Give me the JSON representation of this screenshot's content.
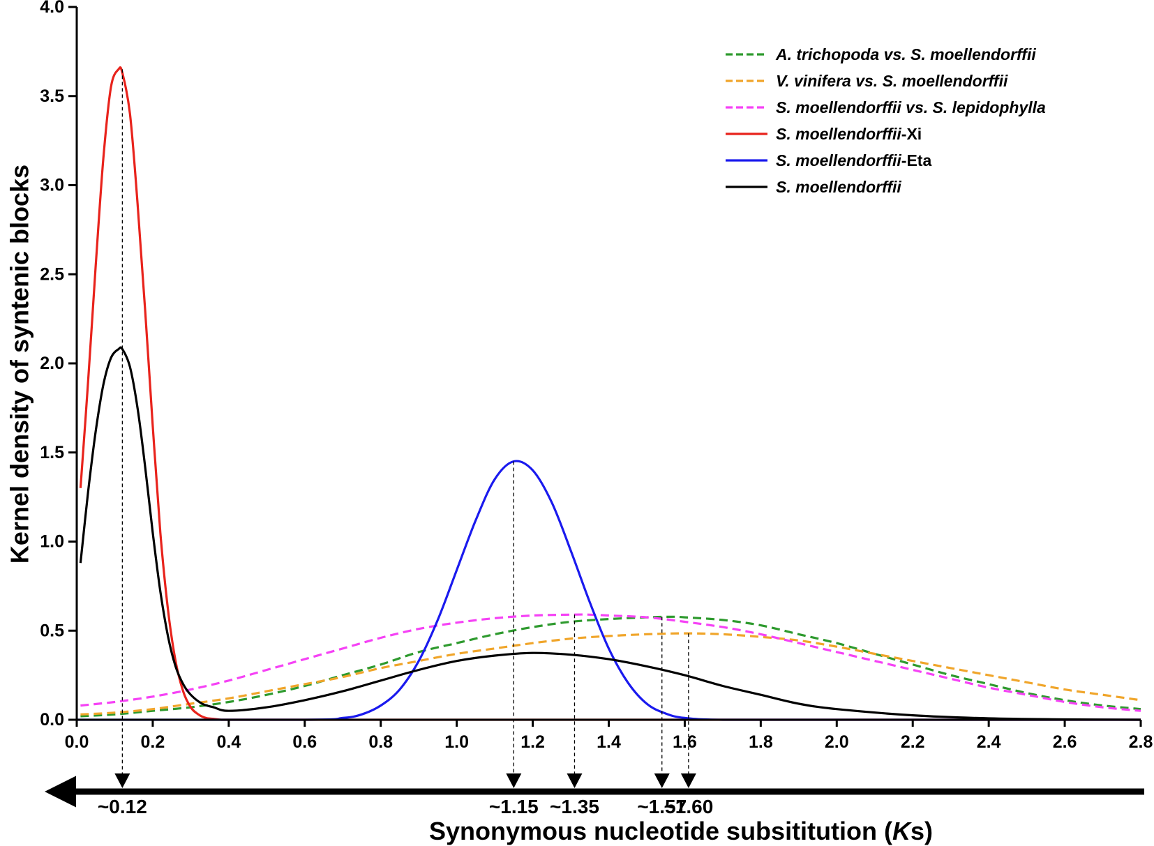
{
  "chart_data": {
    "type": "line",
    "title": "",
    "xlabel": "Synonymous nucleotide subsititution (Ks)",
    "ylabel": "Kernel density of syntenic blocks",
    "xlim": [
      0.0,
      2.8
    ],
    "ylim": [
      0.0,
      4.0
    ],
    "x_ticks": [
      0.0,
      0.2,
      0.4,
      0.6,
      0.8,
      1.0,
      1.2,
      1.4,
      1.6,
      1.8,
      2.0,
      2.2,
      2.4,
      2.6,
      2.8
    ],
    "x_tick_labels": [
      "0.0",
      "0.2",
      "0.4",
      "0.6",
      "0.8",
      "1.0",
      "1.2",
      "1.4",
      "1.6",
      "1.8",
      "2.0",
      "2.2",
      "2.4",
      "2.6",
      "2.8"
    ],
    "y_ticks": [
      0.0,
      0.5,
      1.0,
      1.5,
      2.0,
      2.5,
      3.0,
      3.5,
      4.0
    ],
    "y_tick_labels": [
      "0.0",
      "0.5",
      "1.0",
      "1.5",
      "2.0",
      "2.5",
      "3.0",
      "3.5",
      "4.0"
    ],
    "grid": false,
    "legend_position": "top-right",
    "series": [
      {
        "name": "A. trichopoda vs. S. moellendorffii",
        "name_parts": [
          {
            "text": "A. trichopoda vs. S. moellendorffii",
            "italic": true
          }
        ],
        "color": "#2e9a2e",
        "dashed": true,
        "x": [
          0.01,
          0.1,
          0.2,
          0.3,
          0.4,
          0.5,
          0.6,
          0.7,
          0.8,
          0.9,
          1.0,
          1.1,
          1.2,
          1.3,
          1.4,
          1.5,
          1.57,
          1.6,
          1.7,
          1.8,
          1.9,
          2.0,
          2.1,
          2.2,
          2.3,
          2.4,
          2.5,
          2.6,
          2.7,
          2.8
        ],
        "y": [
          0.02,
          0.03,
          0.05,
          0.07,
          0.1,
          0.14,
          0.19,
          0.25,
          0.31,
          0.38,
          0.43,
          0.48,
          0.52,
          0.55,
          0.565,
          0.575,
          0.578,
          0.575,
          0.56,
          0.53,
          0.48,
          0.43,
          0.37,
          0.31,
          0.25,
          0.2,
          0.15,
          0.11,
          0.08,
          0.06
        ]
      },
      {
        "name": "V. vinifera vs. S. moellendorffii",
        "name_parts": [
          {
            "text": "V. vinifera vs. S. moellendorffii",
            "italic": true
          }
        ],
        "color": "#f0a52a",
        "dashed": true,
        "x": [
          0.01,
          0.1,
          0.2,
          0.3,
          0.4,
          0.5,
          0.6,
          0.7,
          0.8,
          0.9,
          1.0,
          1.1,
          1.2,
          1.3,
          1.4,
          1.5,
          1.6,
          1.7,
          1.8,
          1.9,
          2.0,
          2.1,
          2.2,
          2.3,
          2.4,
          2.5,
          2.6,
          2.7,
          2.8
        ],
        "y": [
          0.03,
          0.04,
          0.06,
          0.09,
          0.12,
          0.16,
          0.2,
          0.24,
          0.29,
          0.33,
          0.37,
          0.4,
          0.43,
          0.455,
          0.47,
          0.48,
          0.485,
          0.48,
          0.465,
          0.445,
          0.41,
          0.37,
          0.33,
          0.29,
          0.25,
          0.21,
          0.17,
          0.14,
          0.11
        ]
      },
      {
        "name": "S. moellendorffii vs. S. lepidophylla",
        "name_parts": [
          {
            "text": "S. moellendorffii vs. S. lepidophylla",
            "italic": true
          }
        ],
        "color": "#f542f5",
        "dashed": true,
        "x": [
          0.01,
          0.1,
          0.2,
          0.3,
          0.4,
          0.5,
          0.6,
          0.7,
          0.8,
          0.9,
          1.0,
          1.1,
          1.2,
          1.3,
          1.35,
          1.4,
          1.5,
          1.6,
          1.7,
          1.8,
          1.9,
          2.0,
          2.1,
          2.2,
          2.3,
          2.4,
          2.5,
          2.6,
          2.7,
          2.8
        ],
        "y": [
          0.08,
          0.1,
          0.13,
          0.17,
          0.22,
          0.28,
          0.34,
          0.4,
          0.46,
          0.51,
          0.545,
          0.57,
          0.585,
          0.59,
          0.59,
          0.585,
          0.575,
          0.55,
          0.52,
          0.48,
          0.43,
          0.38,
          0.33,
          0.28,
          0.23,
          0.18,
          0.14,
          0.1,
          0.07,
          0.05
        ]
      },
      {
        "name": "S. moellendorffii-Xi",
        "name_parts": [
          {
            "text": "S. moellendorffii",
            "italic": true
          },
          {
            "text": "-Xi",
            "italic": false
          }
        ],
        "color": "#e8231c",
        "dashed": false,
        "x": [
          0.01,
          0.03,
          0.05,
          0.07,
          0.09,
          0.11,
          0.12,
          0.14,
          0.16,
          0.18,
          0.2,
          0.22,
          0.24,
          0.26,
          0.28,
          0.3,
          0.32,
          0.34,
          0.36,
          0.38,
          0.4,
          0.5,
          0.8,
          1.2,
          1.6,
          2.0,
          2.4,
          2.8
        ],
        "y": [
          1.3,
          1.9,
          2.55,
          3.15,
          3.55,
          3.65,
          3.63,
          3.4,
          2.9,
          2.3,
          1.65,
          1.05,
          0.62,
          0.33,
          0.16,
          0.07,
          0.03,
          0.01,
          0.005,
          0.0,
          0.0,
          0.0,
          0.0,
          0.0,
          0.0,
          0.0,
          0.0,
          0.0
        ]
      },
      {
        "name": "S. moellendorffii-Eta",
        "name_parts": [
          {
            "text": "S. moellendorffii",
            "italic": true
          },
          {
            "text": "-Eta",
            "italic": false
          }
        ],
        "color": "#1a1aee",
        "dashed": false,
        "x": [
          0.0,
          0.6,
          0.7,
          0.75,
          0.8,
          0.85,
          0.9,
          0.95,
          1.0,
          1.05,
          1.1,
          1.15,
          1.2,
          1.25,
          1.3,
          1.35,
          1.4,
          1.45,
          1.5,
          1.55,
          1.6,
          1.7,
          2.0,
          2.8
        ],
        "y": [
          0.0,
          0.0,
          0.01,
          0.03,
          0.08,
          0.17,
          0.33,
          0.56,
          0.84,
          1.12,
          1.35,
          1.45,
          1.4,
          1.22,
          0.95,
          0.66,
          0.4,
          0.21,
          0.09,
          0.035,
          0.01,
          0.0,
          0.0,
          0.0
        ]
      },
      {
        "name": "S. moellendorffii",
        "name_parts": [
          {
            "text": "S. moellendorffii",
            "italic": true
          }
        ],
        "color": "#000000",
        "dashed": false,
        "x": [
          0.01,
          0.03,
          0.05,
          0.07,
          0.09,
          0.11,
          0.12,
          0.14,
          0.16,
          0.18,
          0.2,
          0.22,
          0.24,
          0.26,
          0.28,
          0.3,
          0.33,
          0.36,
          0.4,
          0.5,
          0.6,
          0.7,
          0.8,
          0.9,
          1.0,
          1.1,
          1.2,
          1.3,
          1.4,
          1.5,
          1.6,
          1.7,
          1.8,
          1.9,
          2.0,
          2.2,
          2.4,
          2.6,
          2.8
        ],
        "y": [
          0.88,
          1.28,
          1.62,
          1.88,
          2.03,
          2.08,
          2.08,
          1.98,
          1.75,
          1.42,
          1.05,
          0.72,
          0.47,
          0.3,
          0.2,
          0.14,
          0.09,
          0.07,
          0.05,
          0.07,
          0.11,
          0.16,
          0.22,
          0.28,
          0.33,
          0.36,
          0.375,
          0.365,
          0.34,
          0.3,
          0.25,
          0.19,
          0.14,
          0.09,
          0.06,
          0.025,
          0.008,
          0.002,
          0.0
        ]
      }
    ],
    "peak_markers": [
      {
        "x": 0.12,
        "y": 3.65,
        "label": "~0.12"
      },
      {
        "x": 1.15,
        "y": 1.45,
        "label": "~1.15"
      },
      {
        "x": 1.31,
        "y": 0.59,
        "label": "~1.35"
      },
      {
        "x": 1.54,
        "y": 0.578,
        "label": "~1.57"
      },
      {
        "x": 1.61,
        "y": 0.485,
        "label": "~1.60"
      }
    ]
  }
}
